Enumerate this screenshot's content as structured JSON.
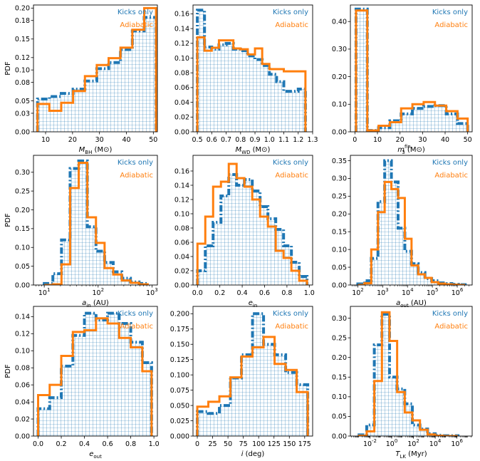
{
  "figure": {
    "ylabel": "PDF",
    "colors": {
      "kicks": "#1f77b4",
      "adiabatic": "#ff7f0e"
    },
    "legend": {
      "kicks": "Kicks only",
      "adiabatic": "Adiabatic"
    }
  },
  "chart_data": [
    {
      "type": "histogram",
      "xscale": "linear",
      "xlabel": "M_BH (M⊙)",
      "xlim": [
        5.5,
        51.5
      ],
      "ylim": [
        0,
        0.205
      ],
      "xticks": [
        10,
        20,
        30,
        40,
        50
      ],
      "xtick_labels": [
        "10",
        "20",
        "30",
        "40",
        "50"
      ],
      "yticks": [
        0,
        0.03,
        0.05,
        0.08,
        0.1,
        0.12,
        0.15,
        0.18,
        0.2
      ],
      "ytick_labels": [
        "0.00",
        "0.03",
        "0.05",
        "0.08",
        "0.10",
        "0.12",
        "0.15",
        "0.18",
        "0.20"
      ],
      "show_ylabel": true,
      "edges": [
        7,
        11.4,
        15.8,
        20.2,
        24.6,
        29,
        33.4,
        37.8,
        42.2,
        46.6,
        51
      ],
      "series": [
        {
          "name": "Kicks only",
          "values": [
            0.053,
            0.057,
            0.062,
            0.069,
            0.082,
            0.102,
            0.112,
            0.133,
            0.163,
            0.185
          ]
        },
        {
          "name": "Adiabatic",
          "values": [
            0.045,
            0.034,
            0.047,
            0.066,
            0.09,
            0.108,
            0.119,
            0.136,
            0.165,
            0.2
          ]
        }
      ]
    },
    {
      "type": "histogram",
      "xscale": "linear",
      "xlabel": "M_WD (M⊙)",
      "xlim": [
        0.47,
        1.3
      ],
      "ylim": [
        0,
        0.172
      ],
      "xticks": [
        0.5,
        0.6,
        0.7,
        0.8,
        0.9,
        1.0,
        1.1,
        1.2,
        1.3
      ],
      "xtick_labels": [
        "0.5",
        "0.6",
        "0.7",
        "0.8",
        "0.9",
        "1.0",
        "1.1",
        "1.2",
        "1.3"
      ],
      "yticks": [
        0,
        0.02,
        0.04,
        0.06,
        0.08,
        0.1,
        0.12,
        0.14,
        0.16
      ],
      "ytick_labels": [
        "0.00",
        "0.02",
        "0.04",
        "0.06",
        "0.08",
        "0.10",
        "0.12",
        "0.14",
        "0.16"
      ],
      "show_ylabel": false,
      "edges": [
        0.5,
        0.55,
        0.6,
        0.65,
        0.7,
        0.75,
        0.8,
        0.85,
        0.9,
        0.95,
        1.0,
        1.05,
        1.1,
        1.15,
        1.2,
        1.25
      ],
      "series": [
        {
          "name": "Kicks only",
          "values": [
            0.165,
            0.115,
            0.112,
            0.118,
            0.12,
            0.112,
            0.11,
            0.103,
            0.098,
            0.09,
            0.078,
            0.068,
            0.055,
            0.055,
            0.058
          ]
        },
        {
          "name": "Adiabatic",
          "values": [
            0.128,
            0.11,
            0.114,
            0.124,
            0.124,
            0.113,
            0.112,
            0.105,
            0.113,
            0.092,
            0.085,
            0.085,
            0.082,
            0.082,
            0.082
          ]
        }
      ]
    },
    {
      "type": "histogram",
      "xscale": "linear",
      "xlabel": "m_3^fin (M⊙)",
      "xlim": [
        -2,
        52
      ],
      "ylim": [
        0,
        0.46
      ],
      "xticks": [
        0,
        10,
        20,
        30,
        40,
        50
      ],
      "xtick_labels": [
        "0",
        "10",
        "20",
        "30",
        "40",
        "50"
      ],
      "yticks": [
        0,
        0.1,
        0.2,
        0.3,
        0.4
      ],
      "ytick_labels": [
        "0.00",
        "0.10",
        "0.20",
        "0.30",
        "0.40"
      ],
      "show_ylabel": false,
      "edges": [
        0.5,
        5.5,
        10.5,
        15.5,
        20.5,
        25.5,
        30.5,
        35.5,
        40.5,
        45.5,
        50
      ],
      "series": [
        {
          "name": "Kicks only",
          "values": [
            0.445,
            0.005,
            0.015,
            0.04,
            0.065,
            0.085,
            0.092,
            0.095,
            0.065,
            0.03
          ]
        },
        {
          "name": "Adiabatic",
          "values": [
            0.44,
            0.005,
            0.022,
            0.035,
            0.085,
            0.1,
            0.108,
            0.095,
            0.075,
            0.048
          ]
        }
      ]
    },
    {
      "type": "histogram",
      "xscale": "log",
      "xlabel": "a_in (AU)",
      "xlim": [
        0.8,
        3.1
      ],
      "ylim": [
        0,
        0.345
      ],
      "xticks": [
        1,
        2,
        3
      ],
      "xtick_labels": [
        "10^1",
        "10^2",
        "10^3"
      ],
      "yticks": [
        0,
        0.05,
        0.1,
        0.15,
        0.2,
        0.25,
        0.3
      ],
      "ytick_labels": [
        "0.00",
        "0.05",
        "0.10",
        "0.15",
        "0.20",
        "0.25",
        "0.30"
      ],
      "show_ylabel": true,
      "edges_log10": [
        1.0,
        1.16,
        1.32,
        1.48,
        1.64,
        1.8,
        1.96,
        2.12,
        2.28,
        2.44,
        2.6,
        2.76,
        2.92
      ],
      "series": [
        {
          "name": "Kicks only",
          "values": [
            0.004,
            0.03,
            0.12,
            0.31,
            0.33,
            0.155,
            0.09,
            0.06,
            0.035,
            0.018,
            0.008,
            0.004
          ]
        },
        {
          "name": "Adiabatic",
          "values": [
            0.0,
            0.002,
            0.055,
            0.258,
            0.325,
            0.18,
            0.112,
            0.045,
            0.028,
            0.012,
            0.006,
            0.002
          ]
        }
      ]
    },
    {
      "type": "histogram",
      "xscale": "linear",
      "xlabel": "e_in",
      "xlim": [
        -0.04,
        1.03
      ],
      "ylim": [
        0,
        0.182
      ],
      "xticks": [
        0,
        0.2,
        0.4,
        0.6,
        0.8,
        1.0
      ],
      "xtick_labels": [
        "0.0",
        "0.2",
        "0.4",
        "0.6",
        "0.8",
        "1.0"
      ],
      "yticks": [
        0,
        0.02,
        0.04,
        0.06,
        0.08,
        0.1,
        0.12,
        0.14,
        0.16
      ],
      "ytick_labels": [
        "0.00",
        "0.02",
        "0.04",
        "0.06",
        "0.08",
        "0.10",
        "0.12",
        "0.14",
        "0.16"
      ],
      "show_ylabel": false,
      "edges": [
        0.0,
        0.07,
        0.14,
        0.21,
        0.28,
        0.35,
        0.42,
        0.49,
        0.56,
        0.63,
        0.7,
        0.77,
        0.84,
        0.91,
        0.98
      ],
      "series": [
        {
          "name": "Kicks only",
          "values": [
            0.02,
            0.055,
            0.088,
            0.125,
            0.155,
            0.14,
            0.148,
            0.132,
            0.11,
            0.093,
            0.078,
            0.055,
            0.032,
            0.012
          ]
        },
        {
          "name": "Adiabatic",
          "values": [
            0.058,
            0.096,
            0.138,
            0.145,
            0.17,
            0.15,
            0.138,
            0.12,
            0.096,
            0.082,
            0.048,
            0.038,
            0.02,
            0.006
          ]
        }
      ]
    },
    {
      "type": "histogram",
      "xscale": "log",
      "xlabel": "a_out (AU)",
      "xlim": [
        1.7,
        6.6
      ],
      "ylim": [
        0,
        0.365
      ],
      "xticks": [
        2,
        3,
        4,
        5,
        6
      ],
      "xtick_labels": [
        "10^2",
        "10^3",
        "10^4",
        "10^5",
        "10^6"
      ],
      "yticks": [
        0,
        0.05,
        0.1,
        0.15,
        0.2,
        0.25,
        0.3,
        0.35
      ],
      "ytick_labels": [
        "0.00",
        "0.05",
        "0.10",
        "0.15",
        "0.20",
        "0.25",
        "0.30",
        "0.35"
      ],
      "show_ylabel": false,
      "edges_log10": [
        2.0,
        2.27,
        2.54,
        2.81,
        3.08,
        3.35,
        3.62,
        3.89,
        4.16,
        4.43,
        4.7,
        4.97,
        5.24,
        5.51,
        5.78,
        6.05,
        6.32
      ],
      "series": [
        {
          "name": "Kicks only",
          "values": [
            0.003,
            0.012,
            0.075,
            0.235,
            0.35,
            0.29,
            0.16,
            0.095,
            0.06,
            0.035,
            0.018,
            0.012,
            0.006,
            0.004,
            0.002,
            0.001
          ]
        },
        {
          "name": "Adiabatic",
          "values": [
            0.0,
            0.005,
            0.1,
            0.205,
            0.29,
            0.27,
            0.245,
            0.13,
            0.055,
            0.03,
            0.02,
            0.008,
            0.004,
            0.002,
            0.001,
            0.0
          ]
        }
      ]
    },
    {
      "type": "histogram",
      "xscale": "linear",
      "xlabel": "e_out",
      "xlim": [
        -0.04,
        1.03
      ],
      "ylim": [
        0,
        0.152
      ],
      "xticks": [
        0,
        0.2,
        0.4,
        0.6,
        0.8,
        1.0
      ],
      "xtick_labels": [
        "0.0",
        "0.2",
        "0.4",
        "0.6",
        "0.8",
        "1.0"
      ],
      "yticks": [
        0,
        0.02,
        0.04,
        0.06,
        0.08,
        0.1,
        0.12,
        0.14
      ],
      "ytick_labels": [
        "0.00",
        "0.02",
        "0.04",
        "0.06",
        "0.08",
        "0.10",
        "0.12",
        "0.14"
      ],
      "show_ylabel": true,
      "edges": [
        0.0,
        0.1,
        0.2,
        0.3,
        0.4,
        0.5,
        0.6,
        0.7,
        0.8,
        0.9,
        0.98
      ],
      "series": [
        {
          "name": "Kicks only",
          "values": [
            0.032,
            0.045,
            0.082,
            0.118,
            0.144,
            0.136,
            0.144,
            0.132,
            0.11,
            0.086
          ]
        },
        {
          "name": "Adiabatic",
          "values": [
            0.048,
            0.06,
            0.094,
            0.122,
            0.124,
            0.138,
            0.132,
            0.115,
            0.104,
            0.076
          ]
        }
      ]
    },
    {
      "type": "histogram",
      "xscale": "linear",
      "xlabel": "i (deg)",
      "xlim": [
        -7,
        188
      ],
      "ylim": [
        0,
        0.212
      ],
      "xticks": [
        0,
        25,
        50,
        75,
        100,
        125,
        150,
        175
      ],
      "xtick_labels": [
        "0",
        "25",
        "50",
        "75",
        "100",
        "125",
        "150",
        "175"
      ],
      "yticks": [
        0,
        0.025,
        0.05,
        0.075,
        0.1,
        0.125,
        0.15,
        0.175,
        0.2
      ],
      "ytick_labels": [
        "0.000",
        "0.025",
        "0.050",
        "0.075",
        "0.100",
        "0.125",
        "0.150",
        "0.175",
        "0.200"
      ],
      "show_ylabel": false,
      "edges": [
        0,
        18,
        36,
        54,
        72,
        90,
        108,
        126,
        144,
        162,
        180
      ],
      "series": [
        {
          "name": "Kicks only",
          "values": [
            0.04,
            0.037,
            0.05,
            0.095,
            0.133,
            0.2,
            0.15,
            0.133,
            0.104,
            0.084
          ]
        },
        {
          "name": "Adiabatic",
          "values": [
            0.048,
            0.056,
            0.065,
            0.096,
            0.13,
            0.145,
            0.162,
            0.118,
            0.108,
            0.072
          ]
        }
      ]
    },
    {
      "type": "histogram",
      "xscale": "log",
      "xlabel": "T_LK (Myr)",
      "xlim": [
        -3.8,
        7.4
      ],
      "ylim": [
        0,
        0.33
      ],
      "xticks": [
        -2,
        0,
        2,
        4,
        6
      ],
      "xtick_labels": [
        "10^-2",
        "10^0",
        "10^2",
        "10^4",
        "10^6"
      ],
      "yticks": [
        0,
        0.05,
        0.1,
        0.15,
        0.2,
        0.25,
        0.3
      ],
      "ytick_labels": [
        "0.00",
        "0.05",
        "0.10",
        "0.15",
        "0.20",
        "0.25",
        "0.30"
      ],
      "show_ylabel": false,
      "edges_log10": [
        -3.0,
        -2.3,
        -1.6,
        -0.9,
        -0.2,
        0.5,
        1.2,
        1.9,
        2.6,
        3.3,
        4.0,
        4.7,
        5.4,
        6.1
      ],
      "series": [
        {
          "name": "Kicks only",
          "values": [
            0.003,
            0.028,
            0.232,
            0.31,
            0.15,
            0.12,
            0.082,
            0.028,
            0.018,
            0.006,
            0.002,
            0.001,
            0.001
          ]
        },
        {
          "name": "Adiabatic",
          "values": [
            0.001,
            0.012,
            0.14,
            0.315,
            0.242,
            0.112,
            0.06,
            0.04,
            0.016,
            0.004,
            0.001,
            0.0,
            0.0
          ]
        }
      ]
    }
  ]
}
